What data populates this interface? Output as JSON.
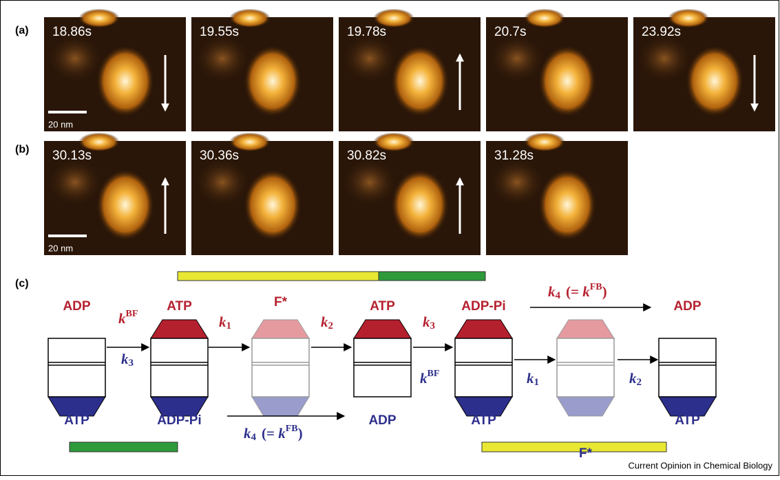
{
  "panel_a": {
    "label": "(a)",
    "frames": [
      "18.86s",
      "19.55s",
      "19.78s",
      "20.7s",
      "23.92s"
    ],
    "scale_bar": "20 nm"
  },
  "panel_b": {
    "label": "(b)",
    "frames": [
      "30.13s",
      "30.36s",
      "30.82s",
      "31.28s"
    ],
    "scale_bar": "20 nm"
  },
  "panel_c": {
    "label": "(c)",
    "states": [
      {
        "top": "ADP",
        "bottom": "ATP"
      },
      {
        "top": "ATP",
        "bottom": "ADP-Pi"
      },
      {
        "top": "F*"
      },
      {
        "top": "ATP",
        "bottom": "ADP"
      },
      {
        "top": "ADP-Pi",
        "bottom": "ATP"
      },
      {
        "bottom": "F*"
      },
      {
        "top": "ADP",
        "bottom": "ATP"
      }
    ],
    "rates_top": [
      {
        "base": "k",
        "sup": "BF"
      },
      {
        "base": "k",
        "sub": "1"
      },
      {
        "base": "k",
        "sub": "2"
      },
      {
        "base": "k",
        "sub": "3"
      }
    ],
    "rates_bottom": [
      {
        "base": "k",
        "sub": "3"
      },
      {
        "base": "k",
        "sup": "BF"
      },
      {
        "base": "k",
        "sub": "1"
      },
      {
        "base": "k",
        "sub": "2"
      }
    ],
    "long_rate_top": {
      "base": "k",
      "sub": "4",
      "open": "(= ",
      "note_base": "k",
      "note_sup": "FB",
      "close": ")"
    },
    "long_rate_bottom": {
      "base": "k",
      "sub": "4",
      "open": "(= ",
      "note_base": "k",
      "note_sup": "FB",
      "close": ")"
    }
  },
  "credit": "Current Opinion in Chemical Biology"
}
